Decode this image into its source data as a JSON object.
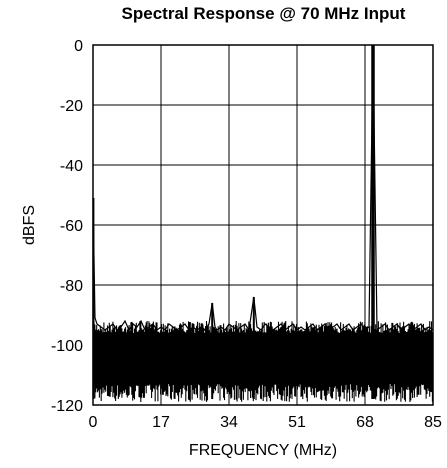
{
  "chart_data": {
    "type": "line",
    "title": "Spectral Response @ 70 MHz Input",
    "xlabel": "FREQUENCY (MHz)",
    "ylabel": "dBFS",
    "xlim": [
      0,
      85
    ],
    "ylim": [
      -120,
      0
    ],
    "x_ticks": [
      "0",
      "17",
      "34",
      "51",
      "68",
      "85"
    ],
    "y_ticks": [
      "0",
      "-20",
      "-40",
      "-60",
      "-80",
      "-100",
      "-120"
    ],
    "grid": true,
    "noise_floor": {
      "top_dbfs": -95,
      "bottom_dbfs": -118
    },
    "spurs": [
      {
        "x": 0.1,
        "y": -51
      },
      {
        "x": 29.8,
        "y": -86
      },
      {
        "x": 40.2,
        "y": -84
      },
      {
        "x": 70.0,
        "y": 0
      }
    ],
    "series": [
      {
        "values_description_note": "",
        "x": [
          0,
          0.5,
          1,
          2,
          3,
          4,
          5,
          6,
          7,
          8,
          9,
          10,
          11,
          12,
          13,
          14,
          15,
          16,
          17,
          18,
          19,
          20,
          21,
          22,
          23,
          24,
          25,
          26,
          27,
          28,
          29,
          29.8,
          30.5,
          31,
          32,
          33,
          34,
          35,
          36,
          37,
          38,
          39,
          40.2,
          41,
          42,
          43,
          44,
          45,
          46,
          47,
          48,
          49,
          50,
          51,
          52,
          53,
          54,
          55,
          56,
          57,
          58,
          59,
          60,
          61,
          62,
          63,
          64,
          65,
          66,
          67,
          68,
          69,
          70,
          71,
          72,
          73,
          74,
          75,
          76,
          77,
          78,
          79,
          80,
          81,
          82,
          83,
          84,
          85
        ],
        "y": [
          -51,
          -91,
          -93,
          -94,
          -95,
          -94,
          -93,
          -95,
          -94,
          -92,
          -95,
          -93,
          -94,
          -92,
          -95,
          -94,
          -93,
          -95,
          -94,
          -95,
          -93,
          -94,
          -95,
          -94,
          -93,
          -95,
          -94,
          -95,
          -94,
          -95,
          -93,
          -86,
          -94,
          -95,
          -94,
          -95,
          -93,
          -94,
          -95,
          -94,
          -93,
          -95,
          -84,
          -94,
          -95,
          -93,
          -94,
          -95,
          -94,
          -93,
          -95,
          -94,
          -93,
          -95,
          -94,
          -95,
          -94,
          -93,
          -95,
          -94,
          -93,
          -95,
          -94,
          -93,
          -95,
          -94,
          -93,
          -95,
          -94,
          -93,
          -95,
          -94,
          0,
          -95,
          -94,
          -93,
          -95,
          -94,
          -93,
          -95,
          -94,
          -93,
          -95,
          -94,
          -93,
          -95,
          -94,
          -95
        ]
      }
    ]
  }
}
